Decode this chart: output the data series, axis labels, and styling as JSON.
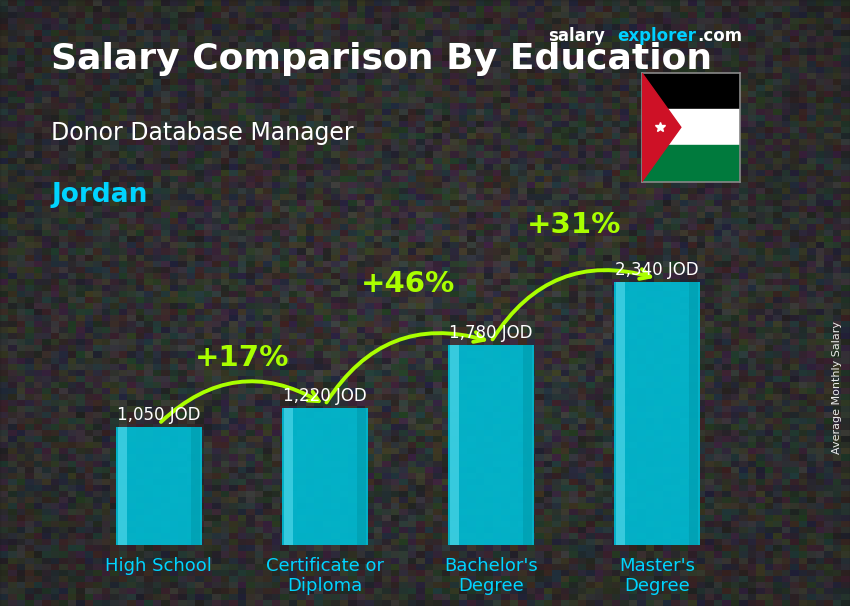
{
  "title": "Salary Comparison By Education",
  "subtitle": "Donor Database Manager",
  "country": "Jordan",
  "ylabel": "Average Monthly Salary",
  "categories": [
    "High School",
    "Certificate or\nDiploma",
    "Bachelor's\nDegree",
    "Master's\nDegree"
  ],
  "values": [
    1050,
    1220,
    1780,
    2340
  ],
  "value_labels": [
    "1,050 JOD",
    "1,220 JOD",
    "1,780 JOD",
    "2,340 JOD"
  ],
  "pct_labels": [
    "+17%",
    "+46%",
    "+31%"
  ],
  "bar_color": "#00bcd4",
  "bar_color_light": "#29e5f5",
  "bar_color_dark": "#0097a7",
  "bar_edge_color": "#4dd6e8",
  "bg_color": "#3a3a3a",
  "text_white": "#ffffff",
  "text_cyan": "#00d4ff",
  "text_green": "#aaff00",
  "brand_salary_color": "#ffffff",
  "brand_explorer_color": "#00cfff",
  "brand_com_color": "#ffffff",
  "ylim_max": 2800,
  "title_fontsize": 26,
  "subtitle_fontsize": 17,
  "country_fontsize": 19,
  "value_fontsize": 12,
  "pct_fontsize": 21,
  "xtick_fontsize": 13,
  "ylabel_fontsize": 8
}
